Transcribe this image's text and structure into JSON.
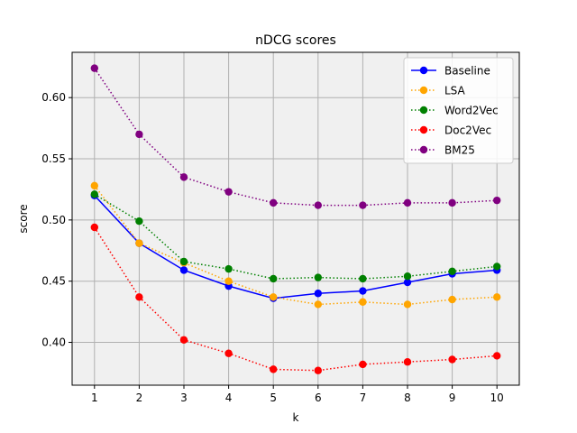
{
  "chart_data": {
    "type": "line",
    "title": "nDCG scores",
    "xlabel": "k",
    "ylabel": "score",
    "x": [
      1,
      2,
      3,
      4,
      5,
      6,
      7,
      8,
      9,
      10
    ],
    "xlim": [
      0.5,
      10.5
    ],
    "ylim": [
      0.365,
      0.637
    ],
    "yticks": [
      0.4,
      0.45,
      0.5,
      0.55,
      0.6
    ],
    "grid": true,
    "legend": "top-right",
    "plot_background": "#f0f0f0",
    "series": [
      {
        "name": "Baseline",
        "color": "#0000ff",
        "style": "solid",
        "values": [
          0.52,
          0.481,
          0.459,
          0.446,
          0.436,
          0.44,
          0.442,
          0.449,
          0.456,
          0.459
        ]
      },
      {
        "name": "LSA",
        "color": "#ffa500",
        "style": "dotted",
        "values": [
          0.528,
          0.481,
          0.465,
          0.45,
          0.437,
          0.431,
          0.433,
          0.431,
          0.435,
          0.437
        ]
      },
      {
        "name": "Word2Vec",
        "color": "#008000",
        "style": "dotted",
        "values": [
          0.521,
          0.499,
          0.466,
          0.46,
          0.452,
          0.453,
          0.452,
          0.454,
          0.458,
          0.462
        ]
      },
      {
        "name": "Doc2Vec",
        "color": "#ff0000",
        "style": "dotted",
        "values": [
          0.494,
          0.437,
          0.402,
          0.391,
          0.378,
          0.377,
          0.382,
          0.384,
          0.386,
          0.389
        ]
      },
      {
        "name": "BM25",
        "color": "#800080",
        "style": "dotted",
        "values": [
          0.624,
          0.57,
          0.535,
          0.523,
          0.514,
          0.512,
          0.512,
          0.514,
          0.514,
          0.516
        ]
      }
    ]
  }
}
